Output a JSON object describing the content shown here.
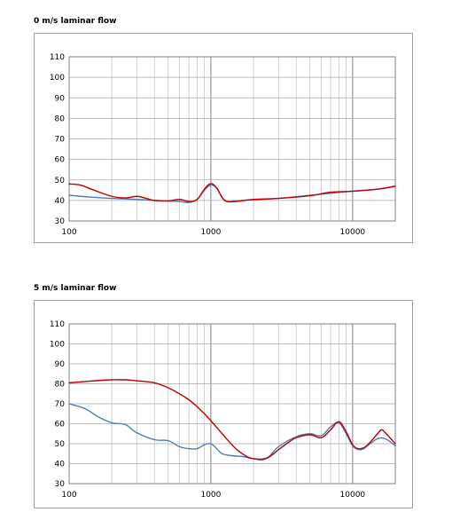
{
  "chart_data": [
    {
      "type": "line",
      "title": "0 m/s laminar flow",
      "xscale": "log",
      "xlim": [
        100,
        20000
      ],
      "ylim": [
        30,
        110
      ],
      "xticks": [
        100,
        1000,
        10000
      ],
      "xtick_labels": [
        "100",
        "1000",
        "10000"
      ],
      "yticks": [
        30,
        40,
        50,
        60,
        70,
        80,
        90,
        100,
        110
      ],
      "ytick_labels": [
        "30",
        "40",
        "50",
        "60",
        "70",
        "80",
        "90",
        "100",
        "110"
      ],
      "grid": true,
      "legend": "none",
      "series": [
        {
          "color": "#4a7ebb",
          "x": [
            100,
            150,
            200,
            300,
            400,
            500,
            600,
            700,
            800,
            900,
            1000,
            1100,
            1200,
            1300,
            1500,
            2000,
            3000,
            5000,
            7000,
            10000,
            15000,
            20000
          ],
          "y": [
            42.5,
            41.5,
            41,
            40.5,
            40,
            39.7,
            39.5,
            39,
            40.5,
            45,
            47.5,
            46,
            41.5,
            39.5,
            39.8,
            40.3,
            41,
            42.5,
            43.5,
            44.5,
            45.5,
            46.8
          ]
        },
        {
          "color": "#c00000",
          "x": [
            100,
            120,
            150,
            200,
            250,
            300,
            350,
            400,
            500,
            600,
            700,
            800,
            900,
            1000,
            1100,
            1200,
            1300,
            1500,
            2000,
            3000,
            5000,
            7000,
            10000,
            15000,
            20000
          ],
          "y": [
            48,
            47.5,
            45,
            42,
            41.2,
            42,
            41,
            40,
            39.8,
            40.5,
            39.5,
            40.5,
            45.5,
            48.2,
            46,
            41.5,
            39.5,
            39.5,
            40.5,
            41,
            42.3,
            44,
            44.5,
            45.5,
            47
          ]
        }
      ]
    },
    {
      "type": "line",
      "title": "5 m/s laminar flow",
      "xscale": "log",
      "xlim": [
        100,
        20000
      ],
      "ylim": [
        30,
        110
      ],
      "xticks": [
        100,
        1000,
        10000
      ],
      "xtick_labels": [
        "100",
        "1000",
        "10000"
      ],
      "yticks": [
        30,
        40,
        50,
        60,
        70,
        80,
        90,
        100,
        110
      ],
      "ytick_labels": [
        "30",
        "40",
        "50",
        "60",
        "70",
        "80",
        "90",
        "100",
        "110"
      ],
      "grid": true,
      "legend": "none",
      "series": [
        {
          "color": "#4a7ebb",
          "x": [
            100,
            130,
            160,
            200,
            250,
            300,
            400,
            500,
            600,
            700,
            800,
            900,
            1000,
            1100,
            1200,
            1400,
            1700,
            2000,
            2500,
            3000,
            4000,
            5000,
            6000,
            7000,
            8000,
            9000,
            10000,
            11000,
            12000,
            13000,
            15000,
            17000,
            20000
          ],
          "y": [
            70,
            67.5,
            63.5,
            60.5,
            59.5,
            55.5,
            52,
            51.5,
            48.5,
            47.5,
            47.5,
            49.5,
            50,
            47.5,
            45,
            44,
            43.5,
            42.5,
            43,
            48.5,
            53.5,
            55,
            54,
            58.5,
            60.5,
            55,
            49,
            47,
            47.5,
            49.5,
            52.5,
            52.5,
            49
          ]
        },
        {
          "color": "#c00000",
          "x": [
            100,
            150,
            200,
            250,
            300,
            400,
            500,
            600,
            700,
            800,
            900,
            1000,
            1200,
            1500,
            1800,
            2000,
            2300,
            2600,
            3000,
            3500,
            4000,
            5000,
            6000,
            7000,
            8000,
            9000,
            10000,
            11000,
            12000,
            13000,
            15000,
            16000,
            17000,
            20000
          ],
          "y": [
            80.5,
            81.5,
            82,
            82,
            81.5,
            80.5,
            78,
            75,
            72,
            68.5,
            65,
            61.5,
            55,
            47.5,
            43.5,
            42.5,
            42,
            43.5,
            47,
            50.5,
            53,
            54.5,
            53,
            57,
            61,
            56,
            49.5,
            47.5,
            48,
            50,
            55,
            57,
            55.5,
            50
          ]
        }
      ]
    }
  ]
}
